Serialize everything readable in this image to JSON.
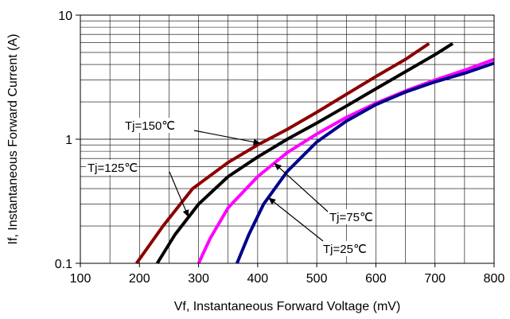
{
  "chart_data": {
    "type": "line",
    "xlabel": "Vf, Instantaneous Forward  Voltage (mV)",
    "ylabel": "If, Instantaneous Forward Current (A)",
    "xlim": [
      100,
      800
    ],
    "ylim": [
      0.1,
      10
    ],
    "y_scale": "log",
    "grid": true,
    "x_ticks": [
      "100",
      "200",
      "300",
      "400",
      "500",
      "600",
      "700",
      "800"
    ],
    "y_ticks": [
      "0.1",
      "1",
      "10"
    ],
    "series": [
      {
        "name": "Tj=150℃",
        "color": "#8b0000",
        "points": [
          [
            195,
            0.1
          ],
          [
            240,
            0.2
          ],
          [
            290,
            0.4
          ],
          [
            350,
            0.65
          ],
          [
            400,
            0.9
          ],
          [
            450,
            1.2
          ],
          [
            500,
            1.65
          ],
          [
            550,
            2.3
          ],
          [
            600,
            3.2
          ],
          [
            650,
            4.4
          ],
          [
            690,
            5.9
          ]
        ]
      },
      {
        "name": "Tj=125℃",
        "color": "#000000",
        "points": [
          [
            230,
            0.1
          ],
          [
            260,
            0.17
          ],
          [
            300,
            0.3
          ],
          [
            350,
            0.5
          ],
          [
            400,
            0.72
          ],
          [
            450,
            1.0
          ],
          [
            500,
            1.35
          ],
          [
            550,
            1.85
          ],
          [
            600,
            2.55
          ],
          [
            650,
            3.5
          ],
          [
            700,
            4.8
          ],
          [
            730,
            5.9
          ]
        ]
      },
      {
        "name": "Tj=75℃",
        "color": "#ff00ff",
        "points": [
          [
            300,
            0.1
          ],
          [
            320,
            0.16
          ],
          [
            350,
            0.28
          ],
          [
            400,
            0.5
          ],
          [
            450,
            0.78
          ],
          [
            500,
            1.1
          ],
          [
            550,
            1.5
          ],
          [
            600,
            1.95
          ],
          [
            650,
            2.45
          ],
          [
            700,
            3.0
          ],
          [
            750,
            3.6
          ],
          [
            800,
            4.4
          ]
        ]
      },
      {
        "name": "Tj=25℃",
        "color": "#00008b",
        "points": [
          [
            365,
            0.1
          ],
          [
            385,
            0.17
          ],
          [
            410,
            0.3
          ],
          [
            450,
            0.55
          ],
          [
            500,
            0.95
          ],
          [
            550,
            1.4
          ],
          [
            600,
            1.9
          ],
          [
            650,
            2.4
          ],
          [
            700,
            2.9
          ],
          [
            750,
            3.4
          ],
          [
            800,
            4.1
          ]
        ]
      }
    ],
    "annotations": [
      {
        "text": "Tj=150℃",
        "series": 0,
        "at_x": 405
      },
      {
        "text": "Tj=125℃",
        "series": 1,
        "at_x": 283
      },
      {
        "text": "Tj=75℃",
        "series": 2,
        "at_x": 428
      },
      {
        "text": "Tj=25℃",
        "series": 3,
        "at_x": 418
      }
    ]
  }
}
